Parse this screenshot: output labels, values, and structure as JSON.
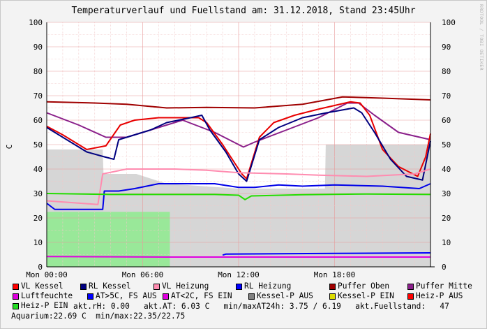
{
  "header": {
    "title": "Temperaturverlauf und Fuellstand am: 31.12.2018, Stand 23:45Uhr",
    "side_text": "RRDTOOL / TOBI OETIKER"
  },
  "chart_data": {
    "type": "line",
    "ylabel": "C",
    "ylim": [
      0,
      100
    ],
    "y_ticks": [
      "0",
      "10",
      "20",
      "30",
      "40",
      "50",
      "60",
      "70",
      "80",
      "90",
      "100"
    ],
    "x_range_hours": [
      0,
      24
    ],
    "x_ticks": [
      {
        "label": "Mon 00:00",
        "hour": 0
      },
      {
        "label": "Mon 06:00",
        "hour": 6
      },
      {
        "label": "Mon 12:00",
        "hour": 12
      },
      {
        "label": "Mon 18:00",
        "hour": 18
      }
    ],
    "grid": true,
    "areas": [
      {
        "name": "Kessel-P AUS",
        "color": "#d6d6d6",
        "points": [
          [
            0,
            48
          ],
          [
            3.5,
            48
          ],
          [
            3.55,
            38
          ],
          [
            5.6,
            38
          ],
          [
            7.5,
            34
          ],
          [
            12,
            32
          ],
          [
            17.4,
            32
          ],
          [
            17.45,
            50
          ],
          [
            24,
            50
          ]
        ]
      },
      {
        "name": "Heiz-P EIN",
        "color": "#99e899",
        "points": [
          [
            0,
            22.5
          ],
          [
            7.7,
            22.5
          ],
          [
            7.7,
            0
          ]
        ]
      }
    ],
    "series": [
      {
        "name": "Puffer Oben",
        "color": "#a00000",
        "points": [
          [
            0,
            67.5
          ],
          [
            3,
            67
          ],
          [
            5,
            66.5
          ],
          [
            7.5,
            65
          ],
          [
            10,
            65.2
          ],
          [
            13,
            65
          ],
          [
            16,
            66.5
          ],
          [
            18.5,
            69.5
          ],
          [
            21,
            69
          ],
          [
            24,
            68.3
          ]
        ]
      },
      {
        "name": "Puffer Mitte",
        "color": "#8a1f8a",
        "points": [
          [
            0,
            63
          ],
          [
            2,
            58
          ],
          [
            3.7,
            53
          ],
          [
            5,
            53
          ],
          [
            6.5,
            56
          ],
          [
            8.5,
            60
          ],
          [
            10.5,
            55
          ],
          [
            12.3,
            49
          ],
          [
            13,
            51
          ],
          [
            15,
            56
          ],
          [
            17,
            61
          ],
          [
            18.8,
            67
          ],
          [
            19.5,
            67
          ],
          [
            20.5,
            62
          ],
          [
            22,
            55
          ],
          [
            24,
            52
          ]
        ]
      },
      {
        "name": "VL Kessel",
        "color": "#e80000",
        "points": [
          [
            0,
            57.5
          ],
          [
            1,
            54
          ],
          [
            2.5,
            48
          ],
          [
            3.7,
            49.5
          ],
          [
            4.6,
            58
          ],
          [
            5.5,
            60
          ],
          [
            7,
            61
          ],
          [
            9.5,
            61
          ],
          [
            10,
            59
          ],
          [
            11,
            50
          ],
          [
            12.2,
            38
          ],
          [
            12.5,
            36
          ],
          [
            13.3,
            53
          ],
          [
            14.2,
            59
          ],
          [
            15.5,
            62
          ],
          [
            17,
            64.5
          ],
          [
            19,
            67.5
          ],
          [
            19.6,
            67
          ],
          [
            20.2,
            62
          ],
          [
            21,
            48
          ],
          [
            22,
            41
          ],
          [
            23.2,
            37
          ],
          [
            23.7,
            45
          ],
          [
            24,
            54.5
          ]
        ]
      },
      {
        "name": "RL Kessel",
        "color": "#00007f",
        "points": [
          [
            0,
            57
          ],
          [
            1,
            53
          ],
          [
            2.5,
            47
          ],
          [
            3.6,
            45
          ],
          [
            4.2,
            44
          ],
          [
            4.5,
            52
          ],
          [
            5.5,
            54
          ],
          [
            6.5,
            56
          ],
          [
            7.5,
            59
          ],
          [
            9,
            61
          ],
          [
            9.7,
            62
          ],
          [
            10.2,
            56
          ],
          [
            11.2,
            47
          ],
          [
            12,
            38
          ],
          [
            12.5,
            35
          ],
          [
            13.3,
            52
          ],
          [
            14.5,
            57
          ],
          [
            16,
            61
          ],
          [
            17.5,
            63
          ],
          [
            19.2,
            65
          ],
          [
            19.7,
            63
          ],
          [
            20.5,
            55
          ],
          [
            21.5,
            44
          ],
          [
            22.5,
            37
          ],
          [
            23.5,
            35.5
          ],
          [
            24,
            51.5
          ]
        ]
      },
      {
        "name": "VL Heizung",
        "color": "#ff8cb0",
        "points": [
          [
            0,
            27
          ],
          [
            3.2,
            25.5
          ],
          [
            3.5,
            38
          ],
          [
            5,
            40
          ],
          [
            8,
            40
          ],
          [
            10,
            39.5
          ],
          [
            12,
            38.5
          ],
          [
            15,
            38
          ],
          [
            17,
            37.5
          ],
          [
            20,
            37
          ],
          [
            23,
            38
          ],
          [
            24,
            40
          ]
        ]
      },
      {
        "name": "RL Heizung",
        "color": "#0000e8",
        "points": [
          [
            0,
            26
          ],
          [
            0.5,
            23.5
          ],
          [
            3.5,
            23.5
          ],
          [
            3.6,
            31
          ],
          [
            4.5,
            31
          ],
          [
            5.5,
            32
          ],
          [
            7,
            34
          ],
          [
            9.5,
            34
          ],
          [
            10.5,
            34
          ],
          [
            12,
            32.5
          ],
          [
            13,
            32.5
          ],
          [
            14.5,
            33.5
          ],
          [
            16,
            33
          ],
          [
            18,
            33.5
          ],
          [
            21,
            33
          ],
          [
            23.3,
            32
          ],
          [
            24,
            34
          ]
        ]
      },
      {
        "name": "Heiz-P EIN",
        "color": "#22dd00",
        "points": [
          [
            0,
            30
          ],
          [
            4,
            29.6
          ],
          [
            10.5,
            29.6
          ],
          [
            12,
            29.3
          ],
          [
            12.4,
            27.5
          ],
          [
            12.8,
            29
          ],
          [
            16,
            29.5
          ],
          [
            20,
            29.8
          ],
          [
            24,
            29.6
          ]
        ]
      },
      {
        "name": "Luftfeuchte",
        "color": "#e000e0",
        "points": [
          [
            0,
            4.2
          ],
          [
            7.5,
            4
          ],
          [
            11,
            4
          ],
          [
            24,
            4
          ]
        ]
      },
      {
        "name": "AT>5C, FS AUS",
        "color": "#0000ff",
        "points": [
          [
            11,
            4.8
          ],
          [
            11.2,
            5.2
          ],
          [
            18,
            5.5
          ],
          [
            24,
            5.7
          ]
        ]
      }
    ]
  },
  "legend": [
    {
      "label": "VL Kessel",
      "color": "#ff0000"
    },
    {
      "label": "RL Kessel",
      "color": "#000080"
    },
    {
      "label": "VL Heizung",
      "color": "#ff8cb0"
    },
    {
      "label": "RL Heizung",
      "color": "#0000ff"
    },
    {
      "label": "Puffer Oben",
      "color": "#a00000"
    },
    {
      "label": "Puffer Mitte",
      "color": "#8a1f8a"
    },
    {
      "label": "Luftfeuchte",
      "color": "#e000e0"
    },
    {
      "label": "AT>5C, FS AUS",
      "color": "#0000ff"
    },
    {
      "label": "AT<2C, FS EIN",
      "color": "#e000e0"
    },
    {
      "label": "Kessel-P AUS",
      "color": "#808080"
    },
    {
      "label": "Kessel-P EIN",
      "color": "#dcdc00"
    },
    {
      "label": "Heiz-P AUS",
      "color": "#ff0000"
    },
    {
      "label": "Heiz-P EIN",
      "color": "#22dd22"
    }
  ],
  "info": {
    "line1": "akt.rH: 0.00   akt.AT: 6.03 C   min/maxAT24h: 3.75 / 6.19   akt.Fuellstand:   47",
    "line2": "Aquarium:22.69 C  min/max:22.35/22.75"
  }
}
